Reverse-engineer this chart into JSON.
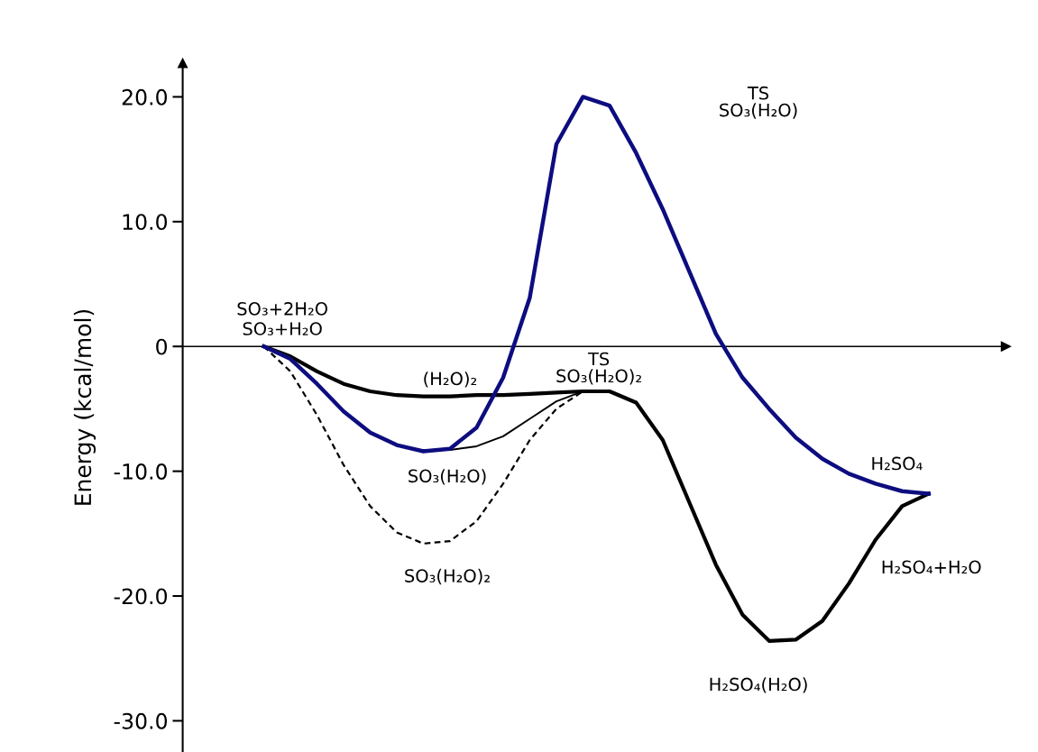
{
  "chart_data": {
    "type": "line",
    "ylabel": "Energy (kcal/mol)",
    "categories": [
      null,
      null,
      null,
      null,
      null,
      null,
      null,
      null,
      null,
      null,
      null,
      null,
      null,
      null,
      null,
      null,
      null,
      null,
      null,
      null,
      null,
      null,
      null,
      null,
      null,
      null
    ],
    "series": [
      {
        "color": "#000000",
        "line_style": "solid",
        "values": [
          0,
          -0.8,
          -2.0,
          -3.0,
          -3.6,
          -3.9,
          -4.0,
          -4.0,
          -3.9,
          -3.9,
          -3.8,
          -3.7,
          -3.6,
          -3.6,
          -4.5,
          -7.5,
          -12.5,
          -17.5,
          -21.5,
          -23.6,
          -23.5,
          -22.0,
          -19.0,
          -15.5,
          -12.8,
          -11.8
        ]
      },
      {
        "color": "#000000",
        "line_style": "dashed",
        "values": [
          0,
          -2.0,
          -5.5,
          -9.5,
          -12.8,
          -14.9,
          -15.8,
          -15.6,
          -14.0,
          -11.0,
          -7.5,
          -5.0,
          -3.6,
          null,
          null,
          null,
          null,
          null,
          null,
          null,
          null,
          null,
          null,
          null,
          null,
          null
        ]
      },
      {
        "color": "#000000",
        "line_style": "solid",
        "values": [
          0,
          -1.0,
          null,
          null,
          null,
          null,
          -8.3,
          -8.3,
          -8.0,
          -7.2,
          -5.8,
          -4.4,
          -3.6,
          null,
          null,
          null,
          null,
          null,
          null,
          null,
          null,
          null,
          null,
          null,
          null,
          null
        ]
      },
      {
        "color": "#0d0d80",
        "line_style": "solid",
        "values": [
          0,
          -1.0,
          -3.0,
          -5.2,
          -6.9,
          -7.9,
          -8.4,
          -8.2,
          -6.5,
          -2.5,
          3.9,
          16.2,
          20.0,
          19.3,
          15.5,
          11.0,
          6.0,
          1.0,
          -2.5,
          -5.0,
          -7.3,
          -9.0,
          -10.2,
          -11.0,
          -11.6,
          -11.8
        ]
      }
    ],
    "ylim": [
      -32.5,
      22.7
    ],
    "yticks": [
      {
        "value": 20,
        "label": "20.0"
      },
      {
        "value": 10,
        "label": "10.0"
      },
      0,
      {
        "value": -10,
        "label": "-10.0"
      },
      {
        "value": -20,
        "label": "-20.0"
      },
      {
        "value": -30,
        "label": "-30.0"
      }
    ],
    "tick_labels": "y",
    "legend": false,
    "annotations": [
      "SO₃+2H₂O",
      "SO₃+H₂O",
      "(H₂O)₂",
      "SO₃(H₂O)",
      "SO₃(H₂O)₂",
      "TS\nSO₃(H₂O)₂",
      "TS\nSO₃(H₂O)",
      "H₂SO₄",
      "H₂SO₄+H₂O",
      "H₂SO₄(H₂O)"
    ]
  }
}
